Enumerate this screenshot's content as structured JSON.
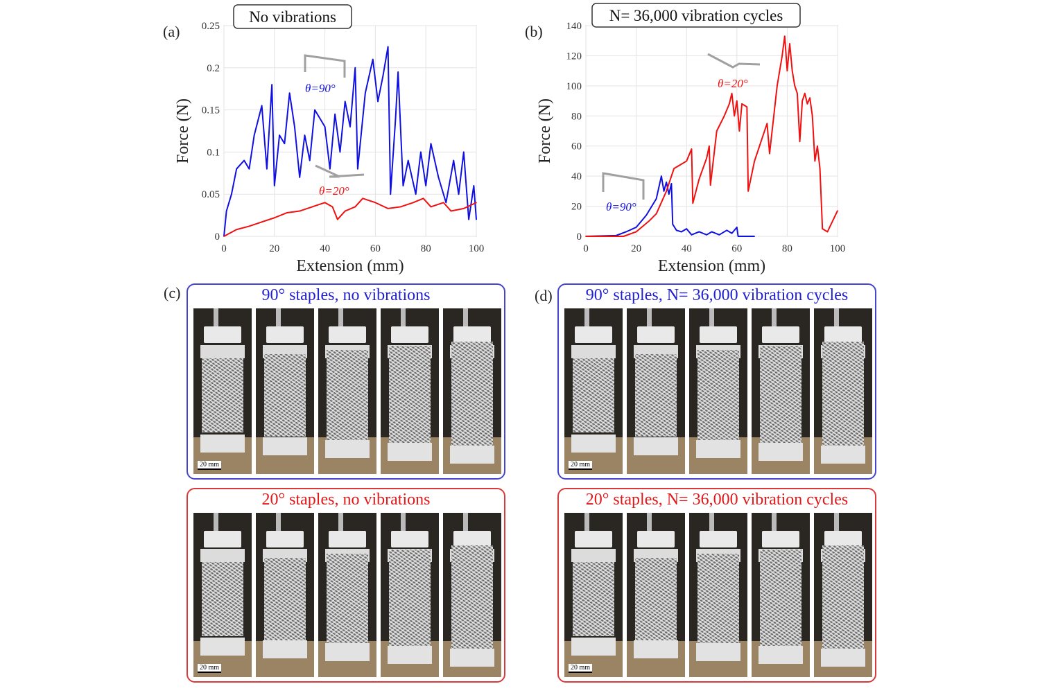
{
  "colors": {
    "blue": "#1010e0",
    "red": "#f01010",
    "annotation": "#a0a0a0",
    "blue_box": "#4444cc",
    "red_box": "#d83a3a"
  },
  "chart_data": [
    {
      "type": "line",
      "panel_label": "(a)",
      "title": "No vibrations",
      "xlabel": "Extension (mm)",
      "ylabel": "Force (N)",
      "xlim": [
        0,
        100
      ],
      "ylim": [
        0,
        0.25
      ],
      "xticks": [
        0,
        20,
        40,
        60,
        80,
        100
      ],
      "yticks": [
        "0",
        "0.05",
        "0.1",
        "0.15",
        "0.2",
        "0.25"
      ],
      "grid": true,
      "series": [
        {
          "name": "θ=90°",
          "color": "#1010e0",
          "x": [
            0,
            1,
            3,
            5,
            8,
            10,
            12,
            15,
            17,
            19,
            20,
            22,
            24,
            26,
            28,
            30,
            32,
            34,
            36,
            40,
            42,
            44,
            46,
            48,
            50,
            52,
            53,
            56,
            59,
            61,
            63,
            65,
            66,
            68,
            69,
            71,
            73,
            76,
            78,
            80,
            82,
            85,
            88,
            91,
            93,
            95,
            97,
            99,
            100
          ],
          "y": [
            0,
            0.03,
            0.05,
            0.08,
            0.09,
            0.08,
            0.12,
            0.155,
            0.08,
            0.18,
            0.06,
            0.12,
            0.11,
            0.17,
            0.13,
            0.07,
            0.12,
            0.09,
            0.15,
            0.13,
            0.08,
            0.145,
            0.1,
            0.16,
            0.13,
            0.2,
            0.08,
            0.17,
            0.21,
            0.16,
            0.19,
            0.225,
            0.05,
            0.14,
            0.195,
            0.06,
            0.09,
            0.05,
            0.1,
            0.06,
            0.11,
            0.07,
            0.04,
            0.09,
            0.05,
            0.1,
            0.02,
            0.06,
            0.02
          ]
        },
        {
          "name": "θ=20°",
          "color": "#f01010",
          "x": [
            0,
            5,
            10,
            15,
            20,
            25,
            30,
            35,
            40,
            43,
            45,
            48,
            52,
            55,
            60,
            65,
            70,
            75,
            79,
            82,
            87,
            90,
            95,
            100
          ],
          "y": [
            0,
            0.008,
            0.012,
            0.017,
            0.022,
            0.028,
            0.03,
            0.035,
            0.04,
            0.035,
            0.02,
            0.03,
            0.035,
            0.045,
            0.04,
            0.033,
            0.035,
            0.04,
            0.045,
            0.035,
            0.04,
            0.03,
            0.033,
            0.04
          ]
        }
      ]
    },
    {
      "type": "line",
      "panel_label": "(b)",
      "title": "N= 36,000 vibration cycles",
      "xlabel": "Extension (mm)",
      "ylabel": "Force (N)",
      "xlim": [
        0,
        100
      ],
      "ylim": [
        0,
        140
      ],
      "xticks": [
        0,
        20,
        40,
        60,
        80,
        100
      ],
      "yticks": [
        "0",
        "20",
        "40",
        "60",
        "80",
        "100",
        "120",
        "140"
      ],
      "grid": true,
      "series": [
        {
          "name": "θ=90°",
          "color": "#1010e0",
          "x": [
            0,
            12,
            16,
            20,
            24,
            28,
            30,
            31,
            32,
            33,
            34,
            34.5,
            36,
            38,
            40,
            42,
            45,
            48,
            50,
            53,
            56,
            58,
            60,
            60.5,
            67
          ],
          "y": [
            0,
            0.5,
            3,
            6,
            14,
            25,
            40,
            30,
            36,
            28,
            35,
            8,
            4,
            3,
            5,
            1,
            3,
            1,
            3,
            1,
            4,
            2,
            6,
            0,
            0
          ]
        },
        {
          "name": "θ=20°",
          "color": "#f01010",
          "x": [
            0,
            15,
            20,
            25,
            28,
            32,
            35,
            38,
            40,
            42,
            42.5,
            45,
            48,
            49,
            49.5,
            52,
            55,
            57,
            58,
            59,
            60,
            61,
            62,
            64,
            64.5,
            67,
            70,
            72,
            73,
            76,
            78,
            79,
            80,
            81,
            82,
            83,
            84,
            85,
            86,
            87,
            88,
            89,
            90,
            91,
            92,
            93,
            94,
            96,
            100
          ],
          "y": [
            0,
            0,
            3,
            10,
            15,
            30,
            45,
            48,
            50,
            58,
            22,
            38,
            52,
            60,
            34,
            70,
            80,
            88,
            95,
            80,
            90,
            70,
            88,
            86,
            30,
            50,
            65,
            75,
            55,
            100,
            120,
            133,
            110,
            128,
            110,
            100,
            95,
            63,
            90,
            95,
            88,
            92,
            80,
            50,
            60,
            45,
            5,
            3,
            17
          ]
        }
      ]
    }
  ],
  "photo_panels": {
    "c": {
      "label": "(c)",
      "top_title": "90° staples, no vibrations",
      "bottom_title": "20° staples, no vibrations"
    },
    "d": {
      "label": "(d)",
      "top_title": "90° staples, N= 36,000 vibration cycles",
      "bottom_title": "20° staples, N= 36,000 vibration cycles"
    },
    "scale_bar": "20 mm"
  }
}
